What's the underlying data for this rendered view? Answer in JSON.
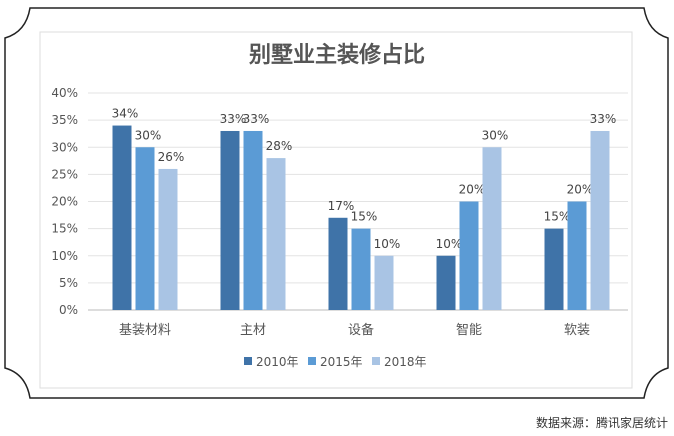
{
  "chart_data": {
    "type": "bar",
    "title": "别墅业主装修占比",
    "categories": [
      "基装材料",
      "主材",
      "设备",
      "智能",
      "软装"
    ],
    "series": [
      {
        "name": "2010年",
        "color": "#3f73a8",
        "values": [
          34,
          33,
          17,
          10,
          15
        ]
      },
      {
        "name": "2015年",
        "color": "#5b9bd5",
        "values": [
          30,
          33,
          15,
          20,
          20
        ]
      },
      {
        "name": "2018年",
        "color": "#a9c4e4",
        "values": [
          26,
          28,
          10,
          30,
          33
        ]
      }
    ],
    "yticks": [
      "0%",
      "5%",
      "10%",
      "15%",
      "20%",
      "25%",
      "30%",
      "35%",
      "40%"
    ],
    "ylim": [
      0,
      40
    ],
    "xlabel": "",
    "ylabel": "",
    "grid": true,
    "legend": "bottom"
  },
  "source": "数据来源：腾讯家居统计"
}
